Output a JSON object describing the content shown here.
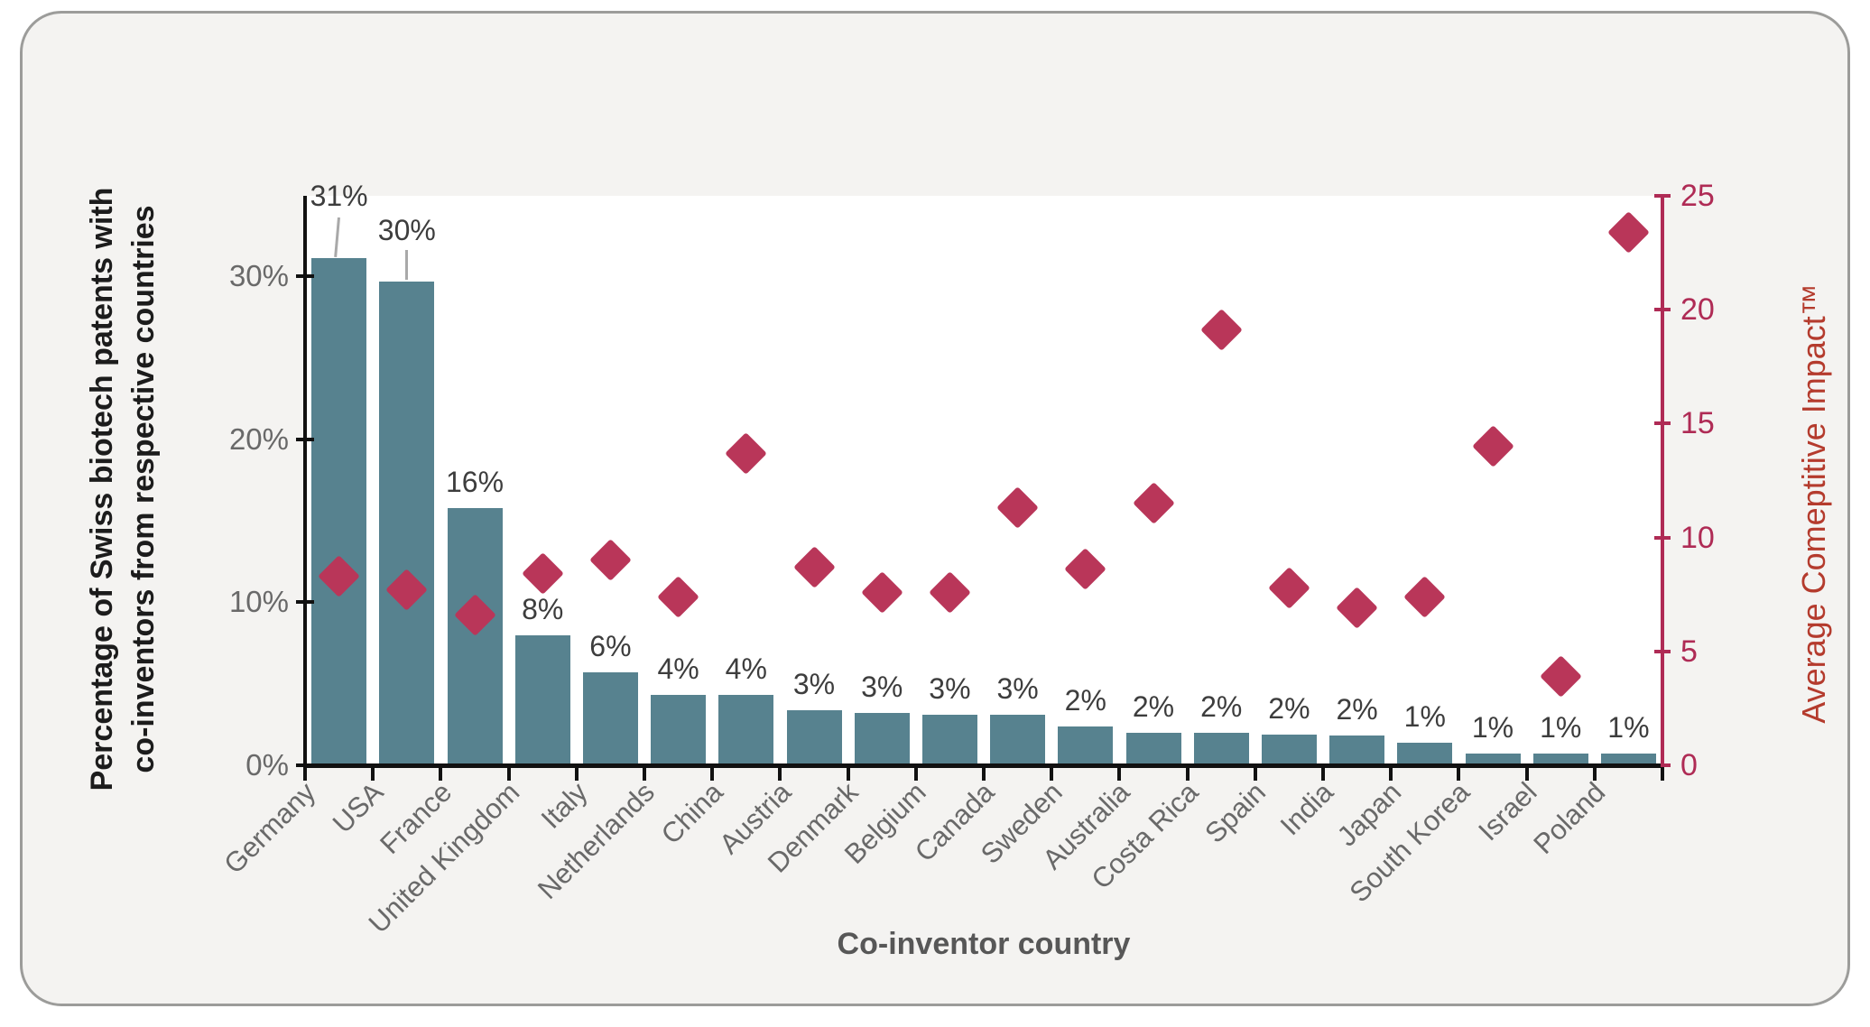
{
  "chart_data": {
    "type": "combo-bar-scatter",
    "title": "",
    "xlabel": "Co-inventor country",
    "ylabel_left_lines": [
      "Percentage of Swiss biotech patents with",
      "co-inventors from respective countries"
    ],
    "ylabel_right": "Average Comeptitive Impact™",
    "categories": [
      "Germany",
      "USA",
      "France",
      "United Kingdom",
      "Italy",
      "Netherlands",
      "China",
      "Austria",
      "Denmark",
      "Belgium",
      "Canada",
      "Sweden",
      "Australia",
      "Costa Rica",
      "Spain",
      "India",
      "Japan",
      "South Korea",
      "Israel",
      "Poland"
    ],
    "series": [
      {
        "name": "Percentage of Swiss biotech patents with co-inventors",
        "type": "bar",
        "axis": "left",
        "unit": "%",
        "values": [
          31.1,
          29.7,
          15.8,
          8.0,
          5.7,
          4.3,
          4.3,
          3.4,
          3.2,
          3.1,
          3.1,
          2.4,
          2.0,
          2.0,
          1.9,
          1.8,
          1.4,
          0.7,
          0.7,
          0.7
        ],
        "labels": [
          "31%",
          "30%",
          "16%",
          "8%",
          "6%",
          "4%",
          "4%",
          "3%",
          "3%",
          "3%",
          "3%",
          "2%",
          "2%",
          "2%",
          "2%",
          "2%",
          "1%",
          "1%",
          "1%",
          "1%"
        ]
      },
      {
        "name": "Average Comeptitive Impact™",
        "type": "scatter",
        "marker": "diamond",
        "axis": "right",
        "values": [
          8.3,
          7.7,
          6.6,
          8.4,
          9.0,
          7.4,
          13.7,
          8.7,
          7.6,
          7.6,
          11.3,
          8.6,
          11.5,
          19.1,
          7.8,
          6.9,
          7.4,
          14.0,
          3.9,
          23.4
        ]
      }
    ],
    "left_axis": {
      "tick_labels": [
        "0%",
        "10%",
        "20%",
        "30%"
      ],
      "tick_values": [
        0,
        10,
        20,
        30
      ],
      "range": [
        0,
        35
      ]
    },
    "right_axis": {
      "tick_labels": [
        "0",
        "5",
        "10",
        "15",
        "20",
        "25"
      ],
      "tick_values": [
        0,
        5,
        10,
        15,
        20,
        25
      ],
      "range": [
        0,
        25
      ]
    },
    "grid": "off",
    "legend": "none",
    "colors": {
      "bar": "#57828F",
      "diamond": "#B93659",
      "right_axis": "#AF2B55",
      "right_title": "#B43B2D",
      "axis_black": "#111111",
      "tick_text": "#696969",
      "bar_label_text": "#3D3D3D",
      "xlabel_text": "#575757",
      "card_bg": "#F4F3F1",
      "card_border": "#9C9C9A",
      "leader_line": "#A9A9A9"
    }
  }
}
